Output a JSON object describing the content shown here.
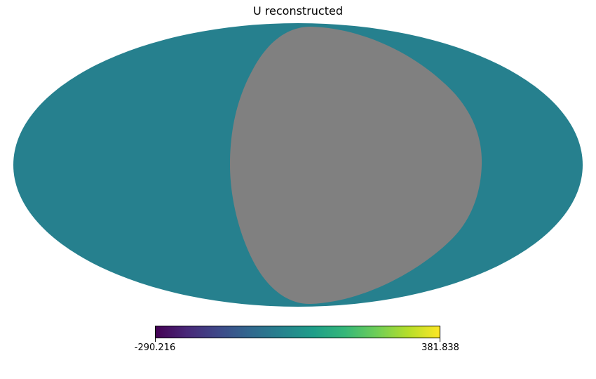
{
  "title": "U reconstructed",
  "projection": "mollweide",
  "colormap": "viridis",
  "colors": {
    "map_fill": "#26808e",
    "masked_region": "#808080",
    "background": "#ffffff"
  },
  "colorbar": {
    "min": -290.216,
    "max": 381.838,
    "min_label": "-290.216",
    "max_label": "381.838",
    "stops": [
      "#440154",
      "#482878",
      "#3e4989",
      "#31688e",
      "#26828e",
      "#1f9e89",
      "#35b779",
      "#6ece58",
      "#b5de2b",
      "#fde725"
    ]
  }
}
